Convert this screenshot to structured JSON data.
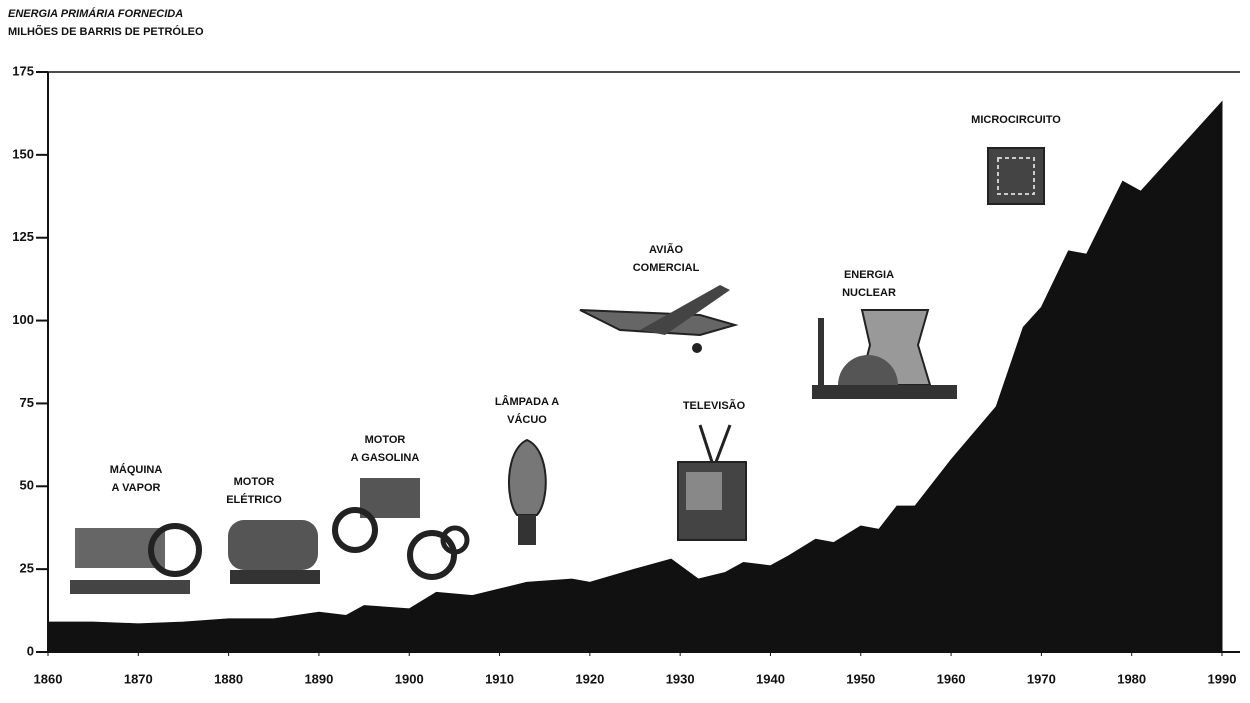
{
  "chart_data": {
    "type": "area",
    "title": "ENERGIA PRIMÁRIA FORNECIDA",
    "subtitle": "MILHÕES DE BARRIS DE PETRÓLEO",
    "x": [
      1860,
      1865,
      1870,
      1875,
      1880,
      1885,
      1890,
      1893,
      1895,
      1900,
      1903,
      1907,
      1910,
      1913,
      1918,
      1920,
      1925,
      1929,
      1932,
      1935,
      1937,
      1940,
      1942,
      1945,
      1947,
      1950,
      1952,
      1954,
      1956,
      1960,
      1965,
      1968,
      1970,
      1973,
      1975,
      1979,
      1981,
      1985,
      1990
    ],
    "values": [
      9,
      9,
      8.5,
      9,
      10,
      10,
      12,
      11,
      14,
      13,
      18,
      17,
      19,
      21,
      22,
      21,
      25,
      28,
      22,
      24,
      27,
      26,
      29,
      34,
      33,
      38,
      37,
      44,
      44,
      58,
      74,
      98,
      104,
      121,
      120,
      142,
      139,
      151,
      166
    ],
    "color": "#111111",
    "xlim": [
      1860,
      1990
    ],
    "xticks": [
      1860,
      1870,
      1880,
      1890,
      1900,
      1910,
      1920,
      1930,
      1940,
      1950,
      1960,
      1970,
      1980,
      1990
    ],
    "ylim": [
      0,
      175
    ],
    "yticks": [
      0,
      25,
      50,
      75,
      100,
      125,
      150,
      175
    ],
    "annotations": [
      {
        "lines": [
          "MÁQUINA",
          "A VAPOR"
        ]
      },
      {
        "lines": [
          "MOTOR",
          "ELÉTRICO"
        ]
      },
      {
        "lines": [
          "MOTOR",
          "A GASOLINA"
        ]
      },
      {
        "lines": [
          "LÂMPADA A",
          "VÁCUO"
        ]
      },
      {
        "lines": [
          "AVIÃO",
          "COMERCIAL"
        ]
      },
      {
        "lines": [
          "TELEVISÃO"
        ]
      },
      {
        "lines": [
          "ENERGIA",
          "NUCLEAR"
        ]
      },
      {
        "lines": [
          "MICROCIRCUITO"
        ]
      }
    ]
  }
}
